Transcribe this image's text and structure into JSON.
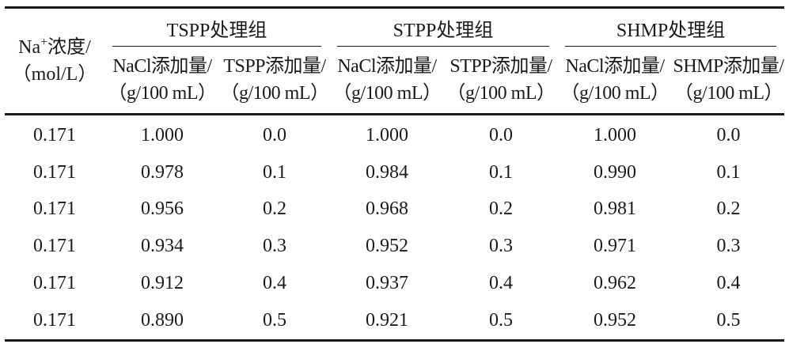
{
  "table": {
    "na_header": {
      "line1": "Na",
      "sup": "+",
      "line1_rest": "浓度/",
      "line2": "（mol/L）"
    },
    "groups": [
      {
        "title": "TSPP处理组",
        "col1": {
          "line1": "NaCl添加量/",
          "line2": "（g/100 mL）"
        },
        "col2": {
          "line1": "TSPP添加量/",
          "line2": "（g/100 mL）"
        }
      },
      {
        "title": "STPP处理组",
        "col1": {
          "line1": "NaCl添加量/",
          "line2": "（g/100 mL）"
        },
        "col2": {
          "line1": "STPP添加量/",
          "line2": "（g/100 mL）"
        }
      },
      {
        "title": "SHMP处理组",
        "col1": {
          "line1": "NaCl添加量/",
          "line2": "（g/100 mL）"
        },
        "col2": {
          "line1": "SHMP添加量/",
          "line2": "（g/100 mL）"
        }
      }
    ],
    "rows": [
      [
        "0.171",
        "1.000",
        "0.0",
        "1.000",
        "0.0",
        "1.000",
        "0.0"
      ],
      [
        "0.171",
        "0.978",
        "0.1",
        "0.984",
        "0.1",
        "0.990",
        "0.1"
      ],
      [
        "0.171",
        "0.956",
        "0.2",
        "0.968",
        "0.2",
        "0.981",
        "0.2"
      ],
      [
        "0.171",
        "0.934",
        "0.3",
        "0.952",
        "0.3",
        "0.971",
        "0.3"
      ],
      [
        "0.171",
        "0.912",
        "0.4",
        "0.937",
        "0.4",
        "0.962",
        "0.4"
      ],
      [
        "0.171",
        "0.890",
        "0.5",
        "0.921",
        "0.5",
        "0.952",
        "0.5"
      ]
    ]
  }
}
